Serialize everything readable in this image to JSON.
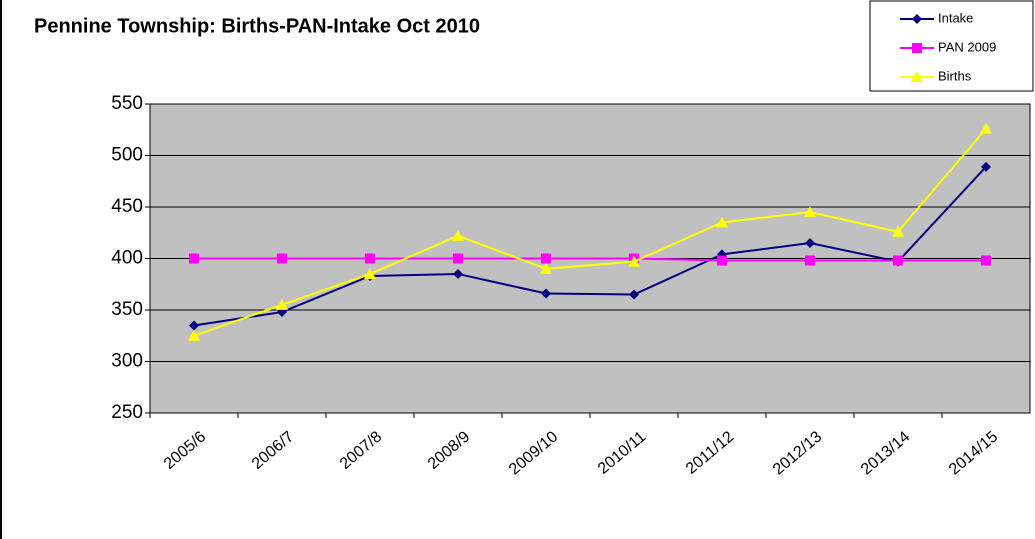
{
  "chart_data": {
    "type": "line",
    "title": "Pennine Township: Births-PAN-Intake Oct 2010",
    "categories": [
      "2005/6",
      "2006/7",
      "2007/8",
      "2008/9",
      "2009/10",
      "2010/11",
      "2011/12",
      "2012/13",
      "2013/14",
      "2014/15"
    ],
    "series": [
      {
        "name": "Intake",
        "color": "#000080",
        "marker": "diamond",
        "values": [
          335,
          348,
          383,
          385,
          366,
          365,
          404,
          415,
          397,
          489
        ]
      },
      {
        "name": "PAN 2009",
        "color": "#ff00ff",
        "marker": "square",
        "values": [
          400,
          400,
          400,
          400,
          400,
          400,
          398,
          398,
          398,
          398
        ]
      },
      {
        "name": "Births",
        "color": "#ffff00",
        "marker": "triangle",
        "values": [
          325,
          355,
          385,
          422,
          390,
          397,
          435,
          445,
          426,
          526
        ]
      }
    ],
    "ylim": [
      250,
      550
    ],
    "yticks": [
      250,
      300,
      350,
      400,
      450,
      500,
      550
    ],
    "grid": true,
    "legend": "top-right"
  }
}
